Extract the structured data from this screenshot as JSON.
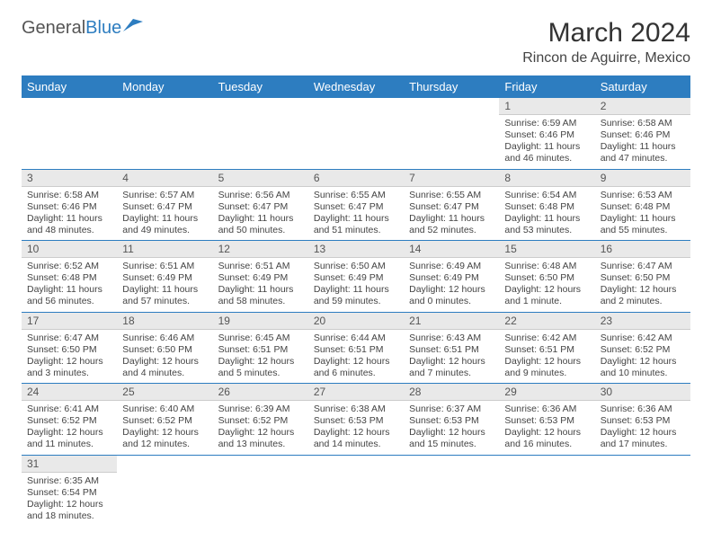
{
  "logo": {
    "general": "General",
    "blue": "Blue"
  },
  "title": "March 2024",
  "location": "Rincon de Aguirre, Mexico",
  "day_headers": [
    "Sunday",
    "Monday",
    "Tuesday",
    "Wednesday",
    "Thursday",
    "Friday",
    "Saturday"
  ],
  "colors": {
    "header_bg": "#2d7dc0",
    "header_text": "#ffffff",
    "daynum_bg": "#e9e9e9",
    "row_border": "#2d7dc0"
  },
  "weeks": [
    [
      {
        "empty": true
      },
      {
        "empty": true
      },
      {
        "empty": true
      },
      {
        "empty": true
      },
      {
        "empty": true
      },
      {
        "num": "1",
        "sunrise": "Sunrise: 6:59 AM",
        "sunset": "Sunset: 6:46 PM",
        "daylight": "Daylight: 11 hours and 46 minutes."
      },
      {
        "num": "2",
        "sunrise": "Sunrise: 6:58 AM",
        "sunset": "Sunset: 6:46 PM",
        "daylight": "Daylight: 11 hours and 47 minutes."
      }
    ],
    [
      {
        "num": "3",
        "sunrise": "Sunrise: 6:58 AM",
        "sunset": "Sunset: 6:46 PM",
        "daylight": "Daylight: 11 hours and 48 minutes."
      },
      {
        "num": "4",
        "sunrise": "Sunrise: 6:57 AM",
        "sunset": "Sunset: 6:47 PM",
        "daylight": "Daylight: 11 hours and 49 minutes."
      },
      {
        "num": "5",
        "sunrise": "Sunrise: 6:56 AM",
        "sunset": "Sunset: 6:47 PM",
        "daylight": "Daylight: 11 hours and 50 minutes."
      },
      {
        "num": "6",
        "sunrise": "Sunrise: 6:55 AM",
        "sunset": "Sunset: 6:47 PM",
        "daylight": "Daylight: 11 hours and 51 minutes."
      },
      {
        "num": "7",
        "sunrise": "Sunrise: 6:55 AM",
        "sunset": "Sunset: 6:47 PM",
        "daylight": "Daylight: 11 hours and 52 minutes."
      },
      {
        "num": "8",
        "sunrise": "Sunrise: 6:54 AM",
        "sunset": "Sunset: 6:48 PM",
        "daylight": "Daylight: 11 hours and 53 minutes."
      },
      {
        "num": "9",
        "sunrise": "Sunrise: 6:53 AM",
        "sunset": "Sunset: 6:48 PM",
        "daylight": "Daylight: 11 hours and 55 minutes."
      }
    ],
    [
      {
        "num": "10",
        "sunrise": "Sunrise: 6:52 AM",
        "sunset": "Sunset: 6:48 PM",
        "daylight": "Daylight: 11 hours and 56 minutes."
      },
      {
        "num": "11",
        "sunrise": "Sunrise: 6:51 AM",
        "sunset": "Sunset: 6:49 PM",
        "daylight": "Daylight: 11 hours and 57 minutes."
      },
      {
        "num": "12",
        "sunrise": "Sunrise: 6:51 AM",
        "sunset": "Sunset: 6:49 PM",
        "daylight": "Daylight: 11 hours and 58 minutes."
      },
      {
        "num": "13",
        "sunrise": "Sunrise: 6:50 AM",
        "sunset": "Sunset: 6:49 PM",
        "daylight": "Daylight: 11 hours and 59 minutes."
      },
      {
        "num": "14",
        "sunrise": "Sunrise: 6:49 AM",
        "sunset": "Sunset: 6:49 PM",
        "daylight": "Daylight: 12 hours and 0 minutes."
      },
      {
        "num": "15",
        "sunrise": "Sunrise: 6:48 AM",
        "sunset": "Sunset: 6:50 PM",
        "daylight": "Daylight: 12 hours and 1 minute."
      },
      {
        "num": "16",
        "sunrise": "Sunrise: 6:47 AM",
        "sunset": "Sunset: 6:50 PM",
        "daylight": "Daylight: 12 hours and 2 minutes."
      }
    ],
    [
      {
        "num": "17",
        "sunrise": "Sunrise: 6:47 AM",
        "sunset": "Sunset: 6:50 PM",
        "daylight": "Daylight: 12 hours and 3 minutes."
      },
      {
        "num": "18",
        "sunrise": "Sunrise: 6:46 AM",
        "sunset": "Sunset: 6:50 PM",
        "daylight": "Daylight: 12 hours and 4 minutes."
      },
      {
        "num": "19",
        "sunrise": "Sunrise: 6:45 AM",
        "sunset": "Sunset: 6:51 PM",
        "daylight": "Daylight: 12 hours and 5 minutes."
      },
      {
        "num": "20",
        "sunrise": "Sunrise: 6:44 AM",
        "sunset": "Sunset: 6:51 PM",
        "daylight": "Daylight: 12 hours and 6 minutes."
      },
      {
        "num": "21",
        "sunrise": "Sunrise: 6:43 AM",
        "sunset": "Sunset: 6:51 PM",
        "daylight": "Daylight: 12 hours and 7 minutes."
      },
      {
        "num": "22",
        "sunrise": "Sunrise: 6:42 AM",
        "sunset": "Sunset: 6:51 PM",
        "daylight": "Daylight: 12 hours and 9 minutes."
      },
      {
        "num": "23",
        "sunrise": "Sunrise: 6:42 AM",
        "sunset": "Sunset: 6:52 PM",
        "daylight": "Daylight: 12 hours and 10 minutes."
      }
    ],
    [
      {
        "num": "24",
        "sunrise": "Sunrise: 6:41 AM",
        "sunset": "Sunset: 6:52 PM",
        "daylight": "Daylight: 12 hours and 11 minutes."
      },
      {
        "num": "25",
        "sunrise": "Sunrise: 6:40 AM",
        "sunset": "Sunset: 6:52 PM",
        "daylight": "Daylight: 12 hours and 12 minutes."
      },
      {
        "num": "26",
        "sunrise": "Sunrise: 6:39 AM",
        "sunset": "Sunset: 6:52 PM",
        "daylight": "Daylight: 12 hours and 13 minutes."
      },
      {
        "num": "27",
        "sunrise": "Sunrise: 6:38 AM",
        "sunset": "Sunset: 6:53 PM",
        "daylight": "Daylight: 12 hours and 14 minutes."
      },
      {
        "num": "28",
        "sunrise": "Sunrise: 6:37 AM",
        "sunset": "Sunset: 6:53 PM",
        "daylight": "Daylight: 12 hours and 15 minutes."
      },
      {
        "num": "29",
        "sunrise": "Sunrise: 6:36 AM",
        "sunset": "Sunset: 6:53 PM",
        "daylight": "Daylight: 12 hours and 16 minutes."
      },
      {
        "num": "30",
        "sunrise": "Sunrise: 6:36 AM",
        "sunset": "Sunset: 6:53 PM",
        "daylight": "Daylight: 12 hours and 17 minutes."
      }
    ],
    [
      {
        "num": "31",
        "sunrise": "Sunrise: 6:35 AM",
        "sunset": "Sunset: 6:54 PM",
        "daylight": "Daylight: 12 hours and 18 minutes."
      },
      {
        "empty": true
      },
      {
        "empty": true
      },
      {
        "empty": true
      },
      {
        "empty": true
      },
      {
        "empty": true
      },
      {
        "empty": true
      }
    ]
  ]
}
